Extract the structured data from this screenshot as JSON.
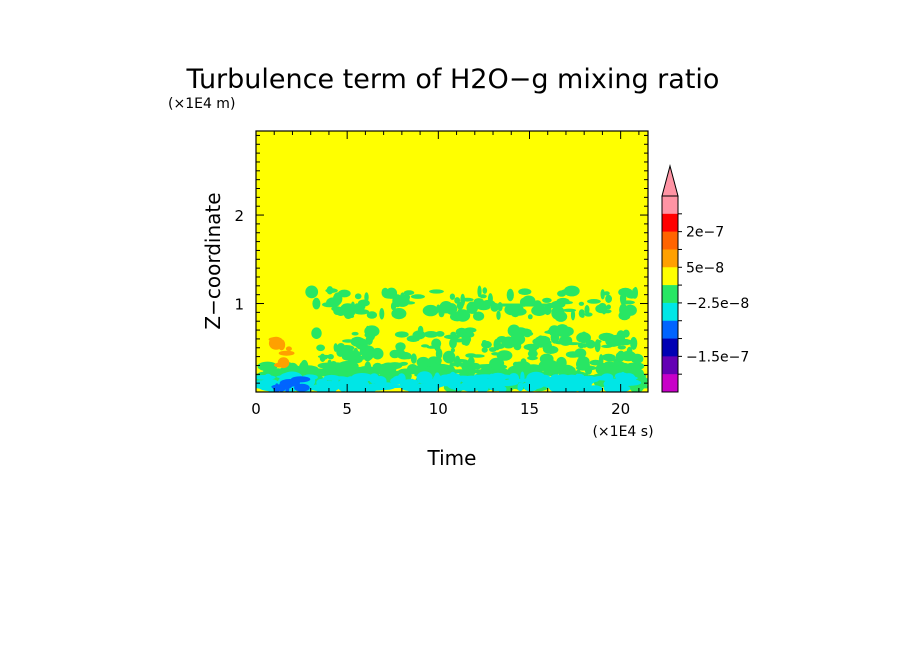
{
  "chart_data": {
    "type": "heatmap",
    "title": "Turbulence term of H2O−g mixing ratio",
    "xlabel": "Time",
    "ylabel": "Z−coordinate",
    "x_unit_label": "(×1E4 s)",
    "y_unit_label": "(×1E4 m)",
    "xlim": [
      0,
      21.5
    ],
    "ylim": [
      0,
      2.95
    ],
    "x_ticks": [
      0,
      5,
      10,
      15,
      20
    ],
    "x_tick_labels": [
      "0",
      "5",
      "10",
      "15",
      "20"
    ],
    "y_ticks": [
      1,
      2
    ],
    "y_tick_labels": [
      "1",
      "2"
    ],
    "background_value_class": "0",
    "colorbar": {
      "colors": [
        "#ff94a4",
        "#ff0000",
        "#ff6400",
        "#ffa000",
        "#ffff00",
        "#28e664",
        "#00e6e6",
        "#0064ff",
        "#0000b4",
        "#6400b4",
        "#c800c8"
      ],
      "tick_labels": [
        "2e−7",
        "5e−8",
        "−2.5e−8",
        "−1.5e−7"
      ],
      "extend": "max",
      "grid": false
    },
    "regions": [
      {
        "level": "green",
        "x": [
          0.3,
          21.5
        ],
        "y": [
          0.05,
          0.3
        ]
      },
      {
        "level": "green",
        "x": [
          3,
          21
        ],
        "y": [
          0.3,
          0.7
        ]
      },
      {
        "level": "green",
        "x": [
          3,
          21
        ],
        "y": [
          0.85,
          1.15
        ]
      },
      {
        "level": "cyan",
        "x": [
          0.2,
          21
        ],
        "y": [
          0.03,
          0.18
        ]
      },
      {
        "level": "blue",
        "x": [
          1,
          2.6
        ],
        "y": [
          0.03,
          0.15
        ]
      },
      {
        "level": "orange",
        "x": [
          1,
          2
        ],
        "y": [
          0.3,
          0.6
        ]
      }
    ]
  }
}
